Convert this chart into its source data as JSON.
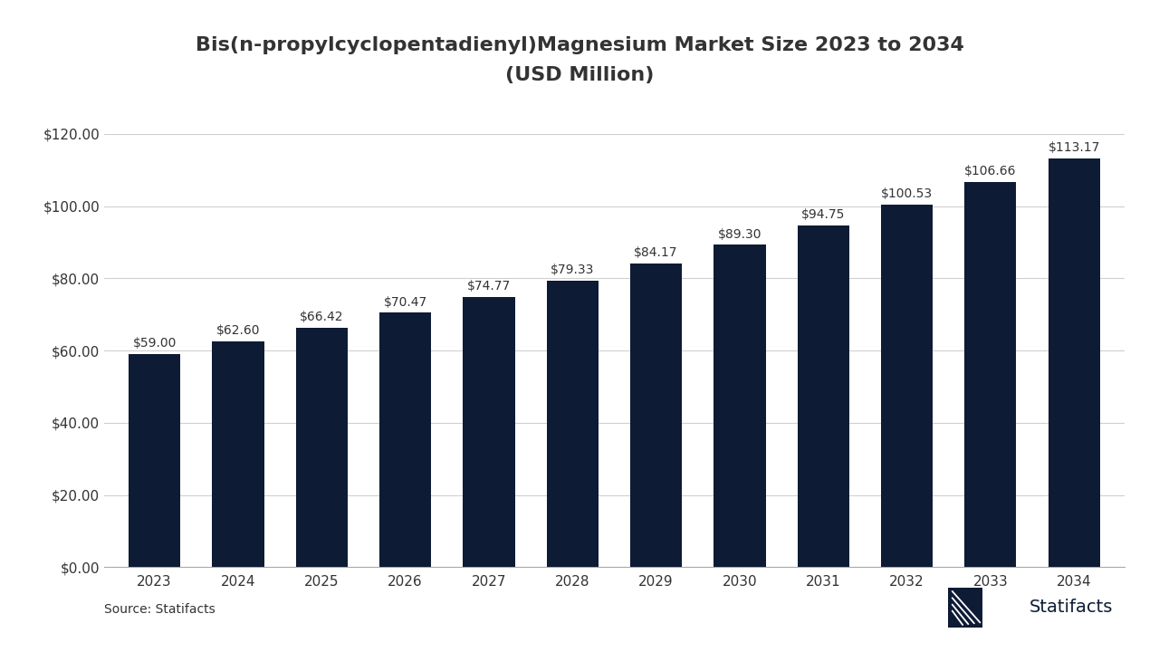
{
  "title_line1": "Bis(n-propylcyclopentadienyl)Magnesium Market Size 2023 to 2034",
  "title_line2": "(USD Million)",
  "years": [
    2023,
    2024,
    2025,
    2026,
    2027,
    2028,
    2029,
    2030,
    2031,
    2032,
    2033,
    2034
  ],
  "values": [
    59.0,
    62.6,
    66.42,
    70.47,
    74.77,
    79.33,
    84.17,
    89.3,
    94.75,
    100.53,
    106.66,
    113.17
  ],
  "labels": [
    "$59.00",
    "$62.60",
    "$66.42",
    "$70.47",
    "$74.77",
    "$79.33",
    "$84.17",
    "$89.30",
    "$94.75",
    "$100.53",
    "$106.66",
    "$113.17"
  ],
  "bar_color": "#0d1b35",
  "background_color": "#ffffff",
  "ylim": [
    0,
    130
  ],
  "yticks": [
    0,
    20,
    40,
    60,
    80,
    100,
    120
  ],
  "ytick_labels": [
    "$0.00",
    "$20.00",
    "$40.00",
    "$60.00",
    "$80.00",
    "$100.00",
    "$120.00"
  ],
  "source_text": "Source: Statifacts",
  "title_fontsize": 16,
  "label_fontsize": 10,
  "tick_fontsize": 11,
  "source_fontsize": 10,
  "grid_color": "#d0d0d0",
  "axis_color": "#aaaaaa",
  "text_color": "#333333",
  "bar_width": 0.62
}
